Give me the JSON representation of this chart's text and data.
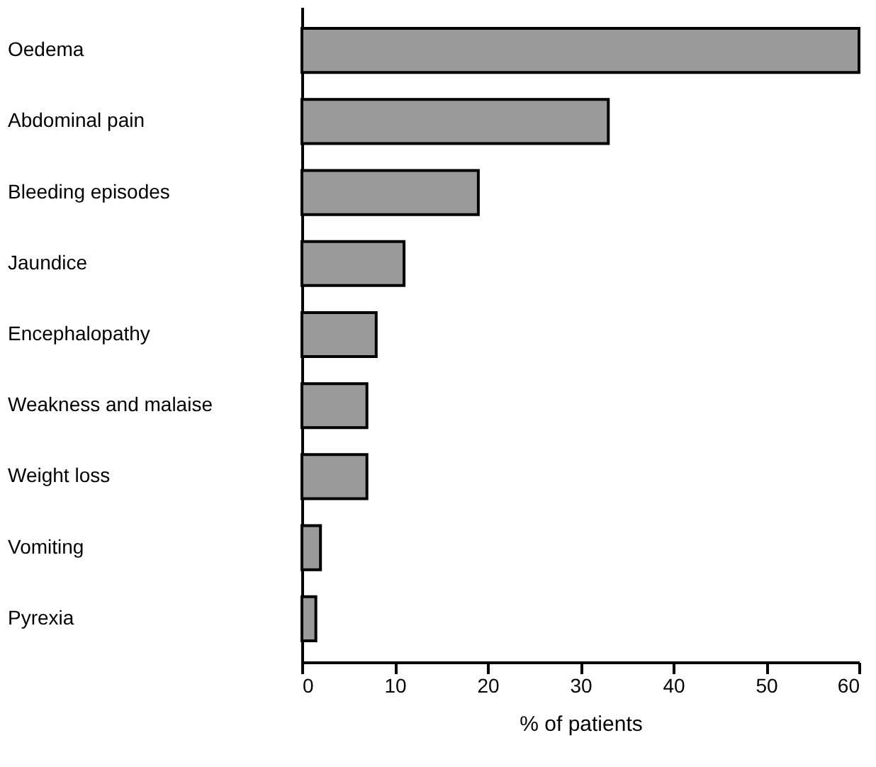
{
  "chart_data": {
    "type": "bar",
    "orientation": "horizontal",
    "xlabel": "% of patients",
    "categories": [
      "Oedema",
      "Abdominal pain",
      "Bleeding episodes",
      "Jaundice",
      "Encephalopathy",
      "Weakness and malaise",
      "Weight loss",
      "Vomiting",
      "Pyrexia"
    ],
    "values": [
      60,
      33,
      19,
      11,
      8,
      7,
      7,
      2,
      1.5
    ],
    "color": "#9a9a9a",
    "xlim": [
      0,
      60
    ],
    "xticks": [
      0,
      10,
      20,
      30,
      40,
      50,
      60
    ]
  }
}
